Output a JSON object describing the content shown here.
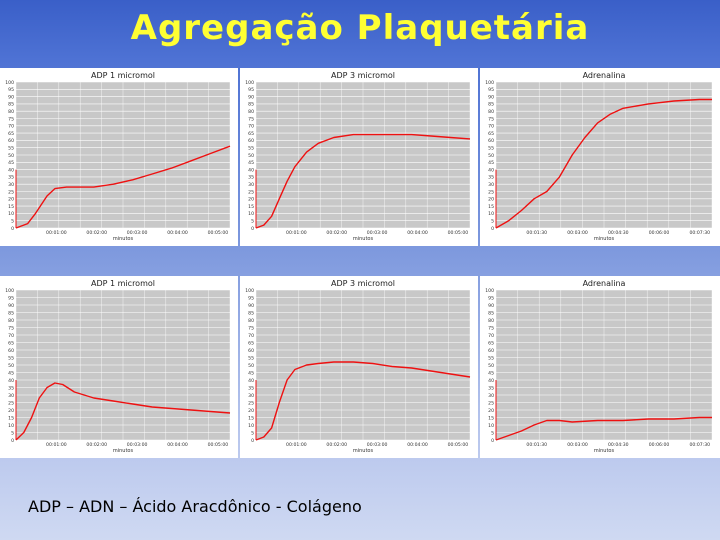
{
  "slide": {
    "title": "Agregação Plaquetária",
    "caption": "ADP – ADN – Ácido Aracdônico - Colágeno"
  },
  "colors": {
    "title": "#ffff33",
    "line": "#ee1111",
    "plot_bg": "#c8c8c8",
    "grid": "#ffffff"
  },
  "chart_data": [
    {
      "type": "line",
      "title": "ADP 1 micromol",
      "xlabel": "minutos",
      "xticks": [
        "00:01:00",
        "00:02:00",
        "00:03:00",
        "00:04:00",
        "00:05:00"
      ],
      "yticks": [
        "0",
        "5",
        "10",
        "15",
        "20",
        "25",
        "30",
        "35",
        "40",
        "45",
        "50",
        "55",
        "60",
        "65",
        "70",
        "75",
        "80",
        "85",
        "90",
        "95",
        "100"
      ],
      "ylim": [
        0,
        100
      ],
      "xlim": [
        0,
        5.5
      ],
      "grid": true,
      "series": [
        {
          "x": [
            0,
            0.3,
            0.5,
            0.8,
            1.0,
            1.3,
            1.6,
            2.0,
            2.5,
            3.0,
            3.5,
            4.0,
            4.5,
            5.0,
            5.5
          ],
          "y": [
            0,
            3,
            10,
            22,
            27,
            28,
            28,
            28,
            30,
            33,
            37,
            41,
            46,
            51,
            56
          ]
        }
      ]
    },
    {
      "type": "line",
      "title": "ADP 3 micromol",
      "xlabel": "minutos",
      "xticks": [
        "00:01:00",
        "00:02:00",
        "00:03:00",
        "00:04:00",
        "00:05:00"
      ],
      "yticks": [
        "0",
        "5",
        "10",
        "15",
        "20",
        "25",
        "30",
        "35",
        "40",
        "45",
        "50",
        "55",
        "60",
        "65",
        "70",
        "75",
        "80",
        "85",
        "90",
        "95",
        "100"
      ],
      "ylim": [
        0,
        100
      ],
      "xlim": [
        0,
        5.5
      ],
      "grid": true,
      "series": [
        {
          "x": [
            0,
            0.2,
            0.4,
            0.6,
            0.8,
            1.0,
            1.3,
            1.6,
            2.0,
            2.5,
            3.0,
            3.5,
            4.0,
            4.5,
            5.0,
            5.5
          ],
          "y": [
            0,
            2,
            8,
            20,
            32,
            42,
            52,
            58,
            62,
            64,
            64,
            64,
            64,
            63,
            62,
            61
          ]
        }
      ]
    },
    {
      "type": "line",
      "title": "Adrenalina",
      "xlabel": "minutos",
      "xticks": [
        "00:01:30",
        "00:03:00",
        "00:04:30",
        "00:06:00",
        "00:07:30"
      ],
      "yticks": [
        "0",
        "5",
        "10",
        "15",
        "20",
        "25",
        "30",
        "35",
        "40",
        "45",
        "50",
        "55",
        "60",
        "65",
        "70",
        "75",
        "80",
        "85",
        "90",
        "95",
        "100"
      ],
      "ylim": [
        0,
        100
      ],
      "xlim": [
        0,
        8.5
      ],
      "grid": true,
      "series": [
        {
          "x": [
            0,
            0.5,
            1.0,
            1.5,
            2.0,
            2.5,
            3.0,
            3.5,
            4.0,
            4.5,
            5.0,
            6.0,
            7.0,
            8.0,
            8.5
          ],
          "y": [
            0,
            5,
            12,
            20,
            25,
            35,
            50,
            62,
            72,
            78,
            82,
            85,
            87,
            88,
            88
          ]
        }
      ]
    },
    {
      "type": "line",
      "title": "ADP 1 micromol",
      "xlabel": "minutos",
      "xticks": [
        "00:01:00",
        "00:02:00",
        "00:03:00",
        "00:04:00",
        "00:05:00"
      ],
      "yticks": [
        "0",
        "5",
        "10",
        "15",
        "20",
        "25",
        "30",
        "35",
        "40",
        "45",
        "50",
        "55",
        "60",
        "65",
        "70",
        "75",
        "80",
        "85",
        "90",
        "95",
        "100"
      ],
      "ylim": [
        0,
        100
      ],
      "xlim": [
        0,
        5.5
      ],
      "grid": true,
      "series": [
        {
          "x": [
            0,
            0.2,
            0.4,
            0.6,
            0.8,
            1.0,
            1.2,
            1.5,
            2.0,
            2.5,
            3.0,
            3.5,
            4.0,
            4.5,
            5.0,
            5.5
          ],
          "y": [
            0,
            5,
            15,
            28,
            35,
            38,
            37,
            32,
            28,
            26,
            24,
            22,
            21,
            20,
            19,
            18
          ]
        }
      ]
    },
    {
      "type": "line",
      "title": "ADP 3 micromol",
      "xlabel": "minutos",
      "xticks": [
        "00:01:00",
        "00:02:00",
        "00:03:00",
        "00:04:00",
        "00:05:00"
      ],
      "yticks": [
        "0",
        "5",
        "10",
        "15",
        "20",
        "25",
        "30",
        "35",
        "40",
        "45",
        "50",
        "55",
        "60",
        "65",
        "70",
        "75",
        "80",
        "85",
        "90",
        "95",
        "100"
      ],
      "ylim": [
        0,
        100
      ],
      "xlim": [
        0,
        5.5
      ],
      "grid": true,
      "series": [
        {
          "x": [
            0,
            0.2,
            0.4,
            0.6,
            0.8,
            1.0,
            1.3,
            1.6,
            2.0,
            2.5,
            3.0,
            3.5,
            4.0,
            4.5,
            5.0,
            5.5
          ],
          "y": [
            0,
            2,
            8,
            25,
            40,
            47,
            50,
            51,
            52,
            52,
            51,
            49,
            48,
            46,
            44,
            42
          ]
        }
      ]
    },
    {
      "type": "line",
      "title": "Adrenalina",
      "xlabel": "minutos",
      "xticks": [
        "00:01:30",
        "00:03:00",
        "00:04:30",
        "00:06:00",
        "00:07:30"
      ],
      "yticks": [
        "0",
        "5",
        "10",
        "15",
        "20",
        "25",
        "30",
        "35",
        "40",
        "45",
        "50",
        "55",
        "60",
        "65",
        "70",
        "75",
        "80",
        "85",
        "90",
        "95",
        "100"
      ],
      "ylim": [
        0,
        100
      ],
      "xlim": [
        0,
        8.5
      ],
      "grid": true,
      "series": [
        {
          "x": [
            0,
            0.5,
            1.0,
            1.5,
            2.0,
            2.5,
            3.0,
            4.0,
            5.0,
            6.0,
            7.0,
            8.0,
            8.5
          ],
          "y": [
            0,
            3,
            6,
            10,
            13,
            13,
            12,
            13,
            13,
            14,
            14,
            15,
            15
          ]
        }
      ]
    }
  ]
}
